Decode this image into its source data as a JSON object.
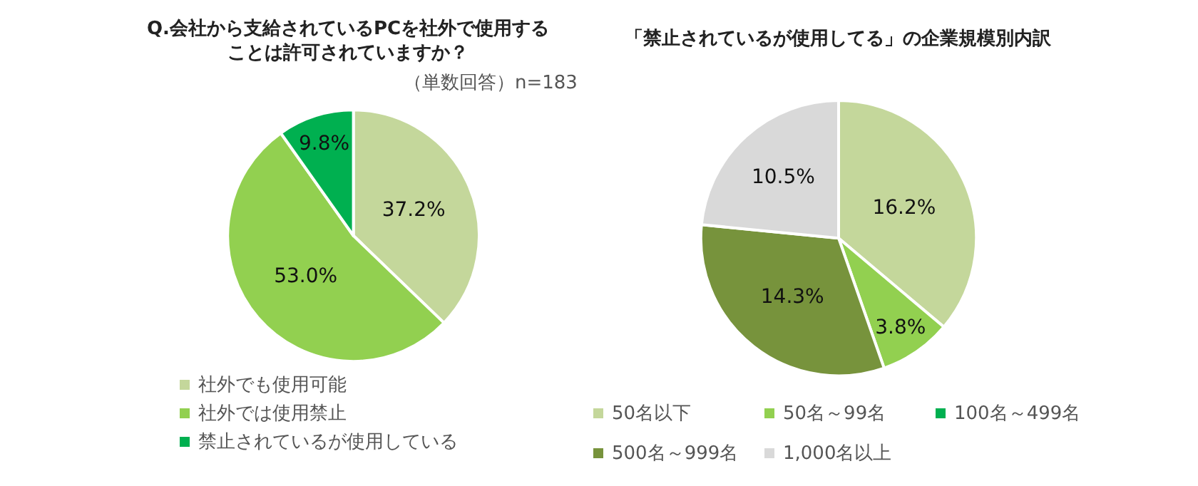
{
  "chart_data": [
    {
      "type": "pie",
      "title": "Q.会社から支給されているPCを社外で使用することは許可されていますか？",
      "subtitle": "（単数回答）n=183",
      "categories": [
        "社外でも使用可能",
        "社外では使用禁止",
        "禁止されているが使用している"
      ],
      "values": [
        37.2,
        53.0,
        9.8
      ],
      "colors": [
        "#c4d79b",
        "#92d050",
        "#00b050"
      ],
      "value_labels": [
        "37.2%",
        "53.0%",
        "9.8%"
      ],
      "legend": "bottom"
    },
    {
      "type": "pie",
      "title": "「禁止されているが使用してる」の企業規模別内訳",
      "categories": [
        "50名以下",
        "50名～99名",
        "100名～499名",
        "500名～999名",
        "1,000名以上"
      ],
      "values": [
        16.2,
        3.8,
        0,
        14.3,
        10.5
      ],
      "colors": [
        "#c4d79b",
        "#92d050",
        "#00b050",
        "#77933c",
        "#d9d9d9"
      ],
      "value_labels": [
        "16.2%",
        "3.8%",
        null,
        "14.3%",
        "10.5%"
      ],
      "legend": "bottom"
    }
  ]
}
